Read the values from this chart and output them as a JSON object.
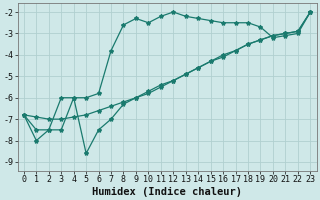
{
  "xlabel": "Humidex (Indice chaleur)",
  "xlim": [
    -0.5,
    23.5
  ],
  "ylim": [
    -9.4,
    -1.6
  ],
  "yticks": [
    -9,
    -8,
    -7,
    -6,
    -5,
    -4,
    -3,
    -2
  ],
  "xticks": [
    0,
    1,
    2,
    3,
    4,
    5,
    6,
    7,
    8,
    9,
    10,
    11,
    12,
    13,
    14,
    15,
    16,
    17,
    18,
    19,
    20,
    21,
    22,
    23
  ],
  "background_color": "#cfe8e8",
  "grid_color": "#b0d0d0",
  "line_color": "#1a7a6e",
  "series": {
    "line1": {
      "x": [
        0,
        1,
        2,
        3,
        4,
        5,
        6,
        7,
        8,
        9,
        10,
        11,
        12,
        13,
        14,
        15,
        16,
        17,
        18,
        19,
        20,
        21,
        22,
        23
      ],
      "y": [
        -6.8,
        -8.0,
        -7.5,
        -7.5,
        -6.0,
        -6.0,
        -5.8,
        -3.8,
        -2.6,
        -2.3,
        -2.5,
        -2.2,
        -2.0,
        -2.2,
        -2.3,
        -2.4,
        -2.5,
        -2.5,
        -2.5,
        -2.7,
        -3.2,
        -3.1,
        -3.0,
        -2.0
      ]
    },
    "line2": {
      "x": [
        0,
        1,
        2,
        3,
        4,
        5,
        6,
        7,
        8,
        9,
        10,
        11,
        12,
        13,
        14,
        15,
        16,
        17,
        18,
        19,
        20,
        21,
        22,
        23
      ],
      "y": [
        -6.8,
        -6.9,
        -7.0,
        -7.0,
        -6.9,
        -6.8,
        -6.6,
        -6.4,
        -6.2,
        -6.0,
        -5.7,
        -5.4,
        -5.2,
        -4.9,
        -4.6,
        -4.3,
        -4.1,
        -3.8,
        -3.5,
        -3.3,
        -3.1,
        -3.0,
        -2.9,
        -2.0
      ]
    },
    "line3": {
      "x": [
        0,
        1,
        2,
        3,
        4,
        5,
        6,
        7,
        8,
        9,
        10,
        11,
        12,
        13,
        14,
        15,
        16,
        17,
        18,
        19,
        20,
        21,
        22,
        23
      ],
      "y": [
        -6.8,
        -7.5,
        -7.5,
        -6.0,
        -6.0,
        -8.6,
        -7.5,
        -7.0,
        -6.3,
        -6.0,
        -5.8,
        -5.5,
        -5.2,
        -4.9,
        -4.6,
        -4.3,
        -4.0,
        -3.8,
        -3.5,
        -3.3,
        -3.1,
        -3.0,
        -2.9,
        -2.0
      ]
    }
  },
  "font_size": 7,
  "tick_font_size": 6,
  "xlabel_fontsize": 7.5
}
